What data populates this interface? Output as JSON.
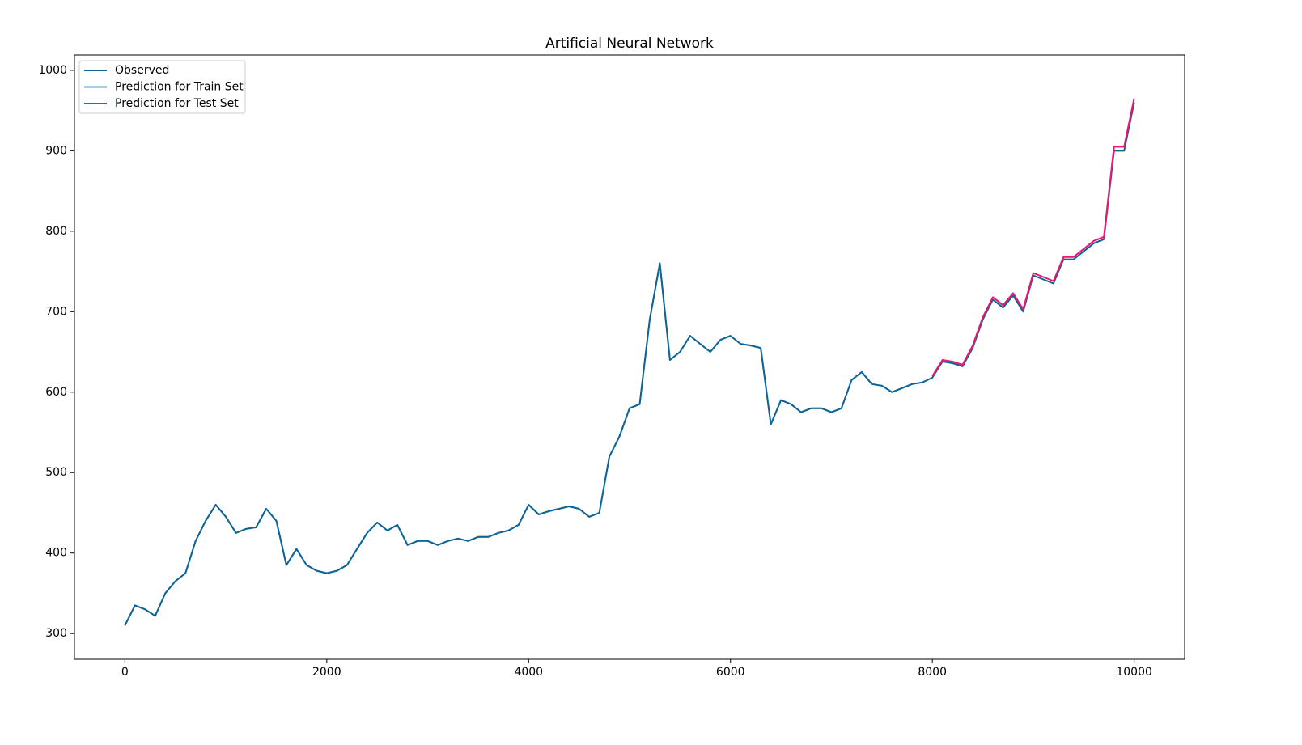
{
  "chart_data": {
    "type": "line",
    "title": "Artificial Neural Network",
    "x": [
      0,
      100,
      200,
      300,
      400,
      500,
      600,
      700,
      800,
      900,
      1000,
      1100,
      1200,
      1300,
      1400,
      1500,
      1600,
      1700,
      1800,
      1900,
      2000,
      2100,
      2200,
      2300,
      2400,
      2500,
      2600,
      2700,
      2800,
      2900,
      3000,
      3100,
      3200,
      3300,
      3400,
      3500,
      3600,
      3700,
      3800,
      3900,
      4000,
      4100,
      4200,
      4300,
      4400,
      4500,
      4600,
      4700,
      4800,
      4900,
      5000,
      5100,
      5200,
      5300,
      5400,
      5500,
      5600,
      5700,
      5800,
      5900,
      6000,
      6100,
      6200,
      6300,
      6400,
      6500,
      6600,
      6700,
      6800,
      6900,
      7000,
      7100,
      7200,
      7300,
      7400,
      7500,
      7600,
      7700,
      7800,
      7900,
      8000,
      8100,
      8200,
      8300,
      8400,
      8500,
      8600,
      8700,
      8800,
      8900,
      9000,
      9100,
      9200,
      9300,
      9400,
      9500,
      9600,
      9700,
      9800,
      9900,
      10000
    ],
    "series": [
      {
        "name": "Observed",
        "color": "#0e6496",
        "values": [
          310,
          335,
          330,
          322,
          350,
          365,
          375,
          415,
          440,
          460,
          445,
          425,
          430,
          432,
          455,
          440,
          385,
          405,
          385,
          378,
          375,
          378,
          385,
          405,
          425,
          438,
          428,
          435,
          410,
          415,
          415,
          410,
          415,
          418,
          415,
          420,
          420,
          425,
          428,
          435,
          460,
          448,
          452,
          455,
          458,
          455,
          445,
          450,
          520,
          545,
          580,
          585,
          690,
          760,
          640,
          650,
          670,
          660,
          650,
          665,
          670,
          660,
          658,
          655,
          560,
          590,
          585,
          575,
          580,
          580,
          575,
          580,
          615,
          625,
          610,
          608,
          600,
          605,
          610,
          612,
          618,
          638,
          636,
          632,
          655,
          690,
          715,
          705,
          720,
          700,
          745,
          740,
          735,
          765,
          765,
          775,
          785,
          790,
          900,
          900,
          960
        ]
      },
      {
        "name": "Prediction for Train Set",
        "color": "#5ba3c8",
        "values": [
          310,
          335,
          330,
          322,
          350,
          365,
          375,
          415,
          440,
          460,
          445,
          425,
          430,
          432,
          455,
          440,
          385,
          405,
          385,
          378,
          375,
          378,
          385,
          405,
          425,
          438,
          428,
          435,
          410,
          415,
          415,
          410,
          415,
          418,
          415,
          420,
          420,
          425,
          428,
          435,
          460,
          448,
          452,
          455,
          458,
          455,
          445,
          450,
          520,
          545,
          580,
          585,
          690,
          760,
          640,
          650,
          670,
          660,
          650,
          665,
          670,
          660,
          658,
          655,
          560,
          590,
          585,
          575,
          580,
          580,
          575,
          580,
          615,
          625,
          610,
          608,
          600,
          605,
          610,
          612,
          null,
          null,
          null,
          null,
          null,
          null,
          null,
          null,
          null,
          null,
          null,
          null,
          null,
          null,
          null,
          null,
          null,
          null,
          null,
          null,
          null
        ]
      },
      {
        "name": "Prediction for Test Set",
        "color": "#f0146e",
        "values": [
          null,
          null,
          null,
          null,
          null,
          null,
          null,
          null,
          null,
          null,
          null,
          null,
          null,
          null,
          null,
          null,
          null,
          null,
          null,
          null,
          null,
          null,
          null,
          null,
          null,
          null,
          null,
          null,
          null,
          null,
          null,
          null,
          null,
          null,
          null,
          null,
          null,
          null,
          null,
          null,
          null,
          null,
          null,
          null,
          null,
          null,
          null,
          null,
          null,
          null,
          null,
          null,
          null,
          null,
          null,
          null,
          null,
          null,
          null,
          null,
          null,
          null,
          null,
          null,
          null,
          null,
          null,
          null,
          null,
          null,
          null,
          null,
          null,
          null,
          null,
          null,
          null,
          null,
          null,
          null,
          620,
          640,
          638,
          634,
          658,
          693,
          718,
          708,
          723,
          703,
          748,
          743,
          738,
          768,
          768,
          778,
          788,
          793,
          905,
          905,
          965
        ]
      }
    ],
    "xlim": [
      -500,
      10500
    ],
    "ylim": [
      268,
      1019
    ],
    "xticks": [
      0,
      2000,
      4000,
      6000,
      8000,
      10000
    ],
    "yticks": [
      300,
      400,
      500,
      600,
      700,
      800,
      900,
      1000
    ],
    "legend": "upper left"
  }
}
